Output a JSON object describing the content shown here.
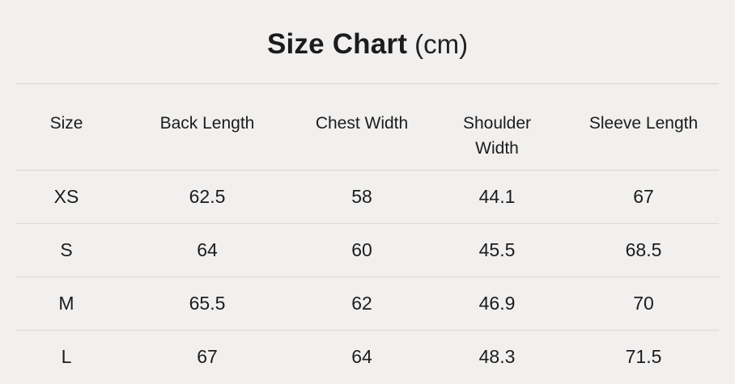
{
  "page": {
    "title_main": "Size Chart",
    "title_unit": "(cm)"
  },
  "colors": {
    "background": "#f1f0ee",
    "text": "#1c1c1e",
    "divider": "#d5d4d2"
  },
  "chart_data": {
    "type": "table",
    "title": "Size Chart (cm)",
    "unit": "cm",
    "columns": [
      "Size",
      "Back Length",
      "Chest Width",
      "Shoulder Width",
      "Sleeve Length"
    ],
    "rows": [
      [
        "XS",
        "62.5",
        "58",
        "44.1",
        "67"
      ],
      [
        "S",
        "64",
        "60",
        "45.5",
        "68.5"
      ],
      [
        "M",
        "65.5",
        "62",
        "46.9",
        "70"
      ],
      [
        "L",
        "67",
        "64",
        "48.3",
        "71.5"
      ]
    ]
  }
}
